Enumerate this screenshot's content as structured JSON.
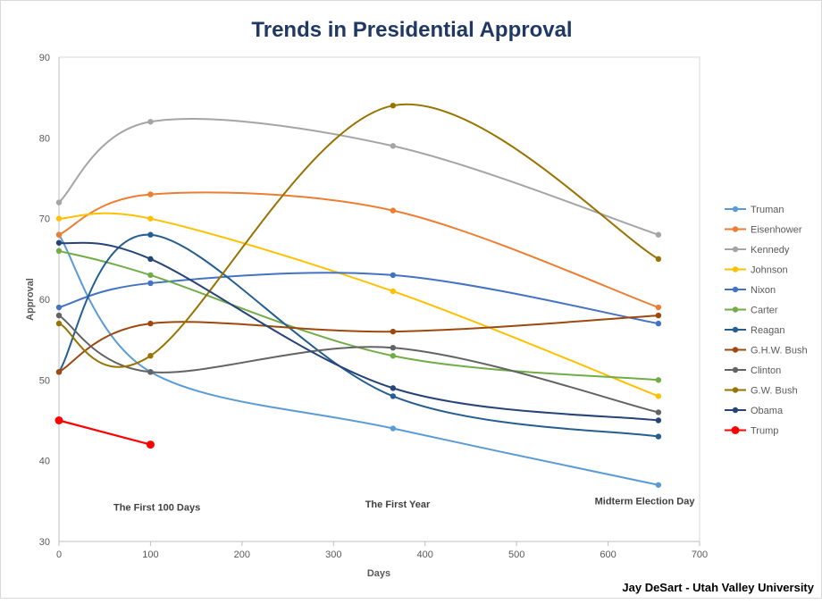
{
  "chart_data": {
    "type": "line",
    "title": "Trends in Presidential Approval",
    "xlabel": "Days",
    "ylabel": "Approval",
    "xlim": [
      0,
      700
    ],
    "ylim": [
      30,
      90
    ],
    "xticks": [
      0,
      100,
      200,
      300,
      400,
      500,
      600,
      700
    ],
    "yticks": [
      30,
      40,
      50,
      60,
      70,
      80,
      90
    ],
    "grid": false,
    "smooth": true,
    "legend_position": "right",
    "annotations": [
      {
        "text": "The First 100 Days",
        "x": 107,
        "y": 33.8
      },
      {
        "text": "The First Year",
        "x": 370,
        "y": 34.2
      },
      {
        "text": "Midterm Election Day",
        "x": 640,
        "y": 34.6
      }
    ],
    "series": [
      {
        "name": "Truman",
        "color": "#5B9BD5",
        "x": [
          0,
          100,
          365,
          655
        ],
        "y": [
          68,
          51,
          44,
          37
        ]
      },
      {
        "name": "Eisenhower",
        "color": "#ED7D31",
        "x": [
          0,
          100,
          365,
          655
        ],
        "y": [
          68,
          73,
          71,
          59
        ]
      },
      {
        "name": "Kennedy",
        "color": "#A5A5A5",
        "x": [
          0,
          100,
          365,
          655
        ],
        "y": [
          72,
          82,
          79,
          68
        ]
      },
      {
        "name": "Johnson",
        "color": "#FFC000",
        "x": [
          0,
          100,
          365,
          655
        ],
        "y": [
          70,
          70,
          61,
          48
        ]
      },
      {
        "name": "Nixon",
        "color": "#4472C4",
        "x": [
          0,
          100,
          365,
          655
        ],
        "y": [
          59,
          62,
          63,
          57
        ]
      },
      {
        "name": "Carter",
        "color": "#70AD47",
        "x": [
          0,
          100,
          365,
          655
        ],
        "y": [
          66,
          63,
          53,
          50
        ]
      },
      {
        "name": "Reagan",
        "color": "#255E91",
        "x": [
          0,
          100,
          365,
          655
        ],
        "y": [
          51,
          68,
          48,
          43
        ]
      },
      {
        "name": "G.H.W. Bush",
        "color": "#9E480E",
        "x": [
          0,
          100,
          365,
          655
        ],
        "y": [
          51,
          57,
          56,
          58
        ]
      },
      {
        "name": "Clinton",
        "color": "#636363",
        "x": [
          0,
          100,
          365,
          655
        ],
        "y": [
          58,
          51,
          54,
          46
        ]
      },
      {
        "name": "G.W. Bush",
        "color": "#997300",
        "x": [
          0,
          100,
          365,
          655
        ],
        "y": [
          57,
          53,
          84,
          65
        ]
      },
      {
        "name": "Obama",
        "color": "#264478",
        "x": [
          0,
          100,
          365,
          655
        ],
        "y": [
          67,
          65,
          49,
          45
        ]
      },
      {
        "name": "Trump",
        "color": "#FF0000",
        "x": [
          0,
          100
        ],
        "y": [
          45,
          42
        ],
        "smooth": false
      }
    ]
  },
  "footer": "Jay DeSart - Utah Valley University"
}
